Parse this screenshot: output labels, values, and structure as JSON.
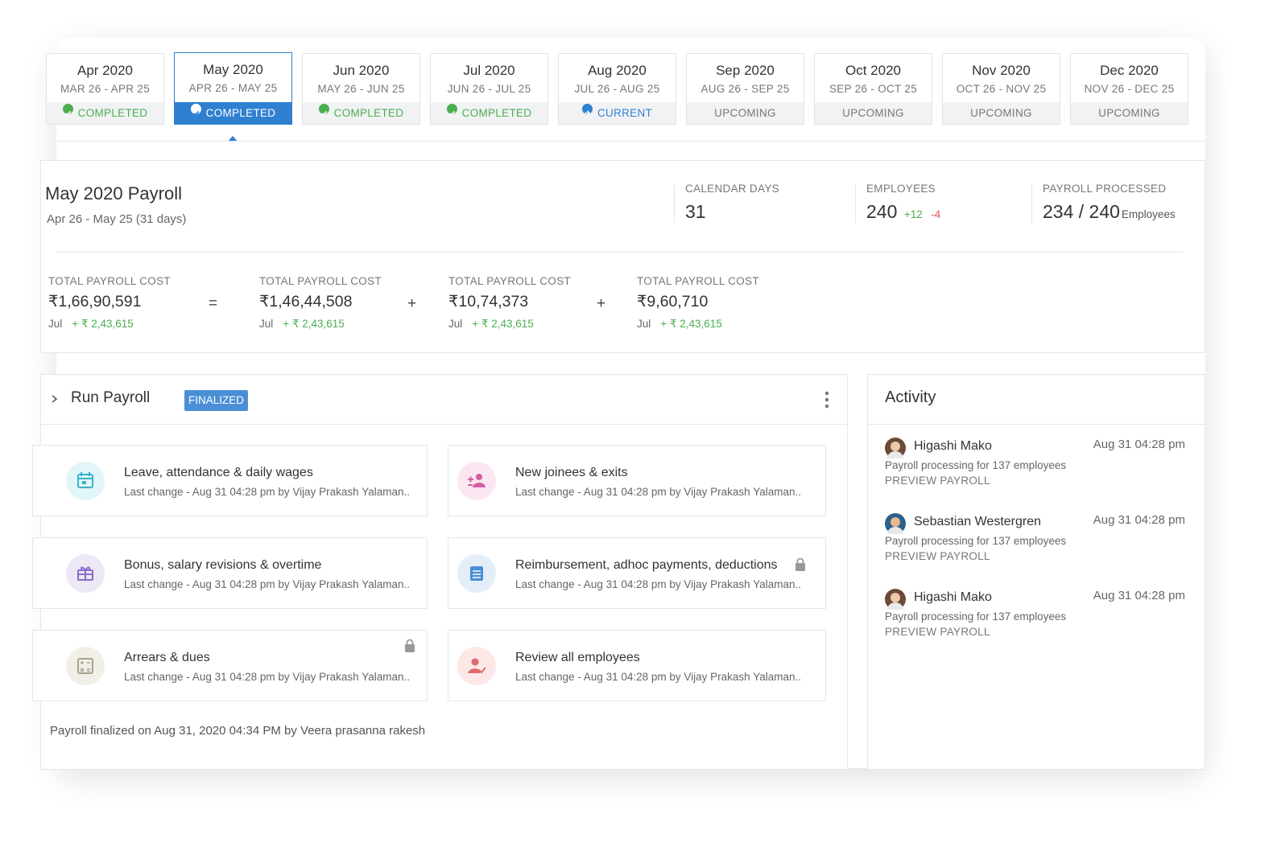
{
  "periods": [
    {
      "month": "Apr 2020",
      "range": "MAR 26 - APR 25",
      "status": "COMPLETED"
    },
    {
      "month": "May 2020",
      "range": "APR 26 - MAY 25",
      "status": "COMPLETED"
    },
    {
      "month": "Jun 2020",
      "range": "MAY 26 - JUN 25",
      "status": "COMPLETED"
    },
    {
      "month": "Jul 2020",
      "range": "JUN 26 - JUL 25",
      "status": "COMPLETED"
    },
    {
      "month": "Aug 2020",
      "range": "JUL 26 - AUG 25",
      "status": "CURRENT"
    },
    {
      "month": "Sep 2020",
      "range": "AUG 26 - SEP 25",
      "status": "UPCOMING"
    },
    {
      "month": "Oct 2020",
      "range": "SEP 26 - OCT 25",
      "status": "UPCOMING"
    },
    {
      "month": "Nov 2020",
      "range": "OCT 26 - NOV 25",
      "status": "UPCOMING"
    },
    {
      "month": "Dec 2020",
      "range": "NOV 26 - DEC 25",
      "status": "UPCOMING"
    }
  ],
  "summary": {
    "title": "May 2020 Payroll",
    "subtitle": "Apr 26 - May 25 (31 days)",
    "calendar_days": {
      "label": "CALENDAR DAYS",
      "value": "31"
    },
    "employees": {
      "label": "EMPLOYEES",
      "value": "240",
      "added": "+12",
      "removed": "-4"
    },
    "processed": {
      "label": "PAYROLL PROCESSED",
      "value": "234 / 240",
      "unit": "Employees"
    }
  },
  "costs": {
    "items": [
      {
        "label": "TOTAL PAYROLL COST",
        "value": "₹1,66,90,591",
        "compare": "Jul",
        "delta": "+ ₹ 2,43,615"
      },
      {
        "label": "TOTAL PAYROLL COST",
        "value": "₹1,46,44,508",
        "compare": "Jul",
        "delta": "+ ₹ 2,43,615"
      },
      {
        "label": "TOTAL PAYROLL COST",
        "value": "₹10,74,373",
        "compare": "Jul",
        "delta": "+ ₹ 2,43,615"
      },
      {
        "label": "TOTAL PAYROLL COST",
        "value": "₹9,60,710",
        "compare": "Jul",
        "delta": "+ ₹ 2,43,615"
      }
    ],
    "operators": [
      "=",
      "+",
      "+"
    ]
  },
  "run_payroll": {
    "title": "Run Payroll",
    "badge": "FINALIZED",
    "tasks": [
      {
        "title": "Leave, attendance & daily wages",
        "subtitle": "Last change - Aug 31 04:28 pm by Vijay Prakash Yalaman.."
      },
      {
        "title": "New joinees & exits",
        "subtitle": "Last change - Aug 31 04:28 pm by Vijay Prakash Yalaman.."
      },
      {
        "title": "Bonus, salary revisions & overtime",
        "subtitle": "Last change - Aug 31 04:28 pm by Vijay Prakash Yalaman.."
      },
      {
        "title": "Reimbursement, adhoc payments, deductions",
        "subtitle": "Last change - Aug 31 04:28 pm by Vijay Prakash Yalaman.."
      },
      {
        "title": "Arrears & dues",
        "subtitle": "Last change - Aug 31 04:28 pm by Vijay Prakash Yalaman.."
      },
      {
        "title": "Review all employees",
        "subtitle": "Last change - Aug 31 04:28 pm by Vijay Prakash Yalaman.."
      }
    ],
    "footer": "Payroll finalized on Aug 31, 2020 04:34 PM by Veera prasanna rakesh"
  },
  "activity": {
    "title": "Activity",
    "items": [
      {
        "name": "Higashi Mako",
        "time": "Aug 31 04:28 pm",
        "text": "Payroll processing for 137 employees",
        "action": "PREVIEW PAYROLL"
      },
      {
        "name": "Sebastian Westergren",
        "time": "Aug 31 04:28 pm",
        "text": "Payroll processing for 137 employees",
        "action": "PREVIEW PAYROLL"
      },
      {
        "name": "Higashi Mako",
        "time": "Aug 31 04:28 pm",
        "text": "Payroll processing for 137 employees",
        "action": "PREVIEW PAYROLL"
      }
    ]
  }
}
